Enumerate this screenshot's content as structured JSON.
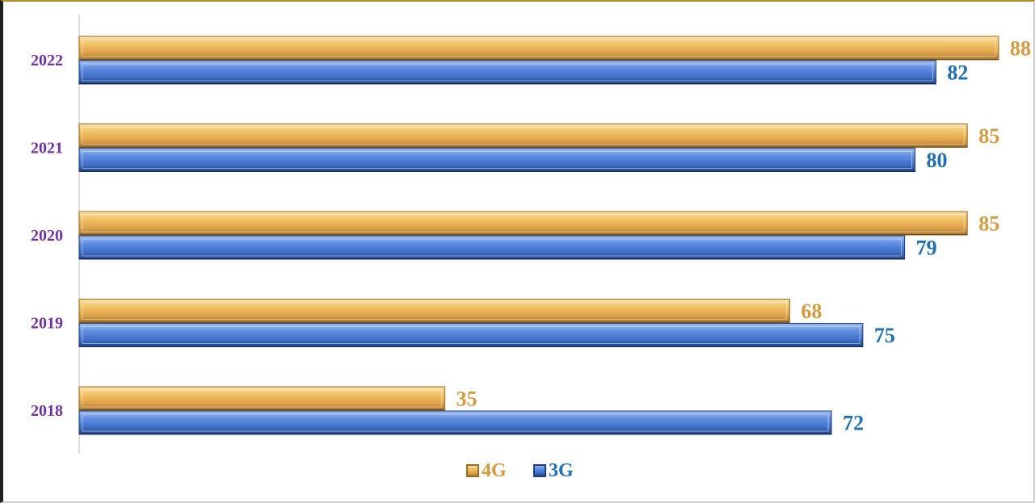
{
  "chart_data": {
    "type": "bar",
    "orientation": "horizontal",
    "categories": [
      "2022",
      "2021",
      "2020",
      "2019",
      "2018"
    ],
    "series": [
      {
        "name": "4G",
        "values": [
          88,
          85,
          85,
          68,
          35
        ],
        "color": "#e0a84a",
        "label_color": "#d49a3f"
      },
      {
        "name": "3G",
        "values": [
          82,
          80,
          79,
          75,
          72
        ],
        "color": "#4a78cf",
        "label_color": "#1f6fb2"
      }
    ],
    "title": "",
    "xlabel": "",
    "ylabel": "",
    "xlim": [
      0,
      88
    ],
    "grid": false,
    "legend_position": "bottom"
  }
}
